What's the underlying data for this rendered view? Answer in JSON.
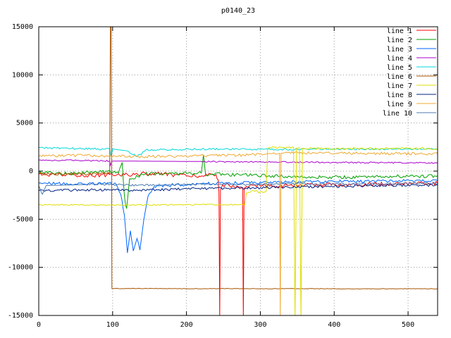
{
  "chart_data": {
    "type": "line",
    "title": "p0140_23",
    "xlabel": "",
    "ylabel": "",
    "xlim": [
      0,
      540
    ],
    "ylim": [
      -15000,
      15000
    ],
    "xticks": [
      0,
      100,
      200,
      300,
      400,
      500
    ],
    "yticks": [
      -15000,
      -10000,
      -5000,
      0,
      5000,
      10000,
      15000
    ],
    "grid": true,
    "legend_position": "top-right",
    "background_color": "#ffffff",
    "border_color": "#000000",
    "series": [
      {
        "name": "line 1",
        "color": "#ff0000",
        "noise": 200,
        "keypoints": [
          [
            0,
            -350
          ],
          [
            60,
            -450
          ],
          [
            120,
            -350
          ],
          [
            160,
            -250
          ],
          [
            200,
            -500
          ],
          [
            225,
            -450
          ],
          [
            240,
            -350
          ],
          [
            243,
            -900,
            100
          ],
          [
            244,
            -2300,
            0
          ],
          [
            245,
            -15500,
            0
          ],
          [
            246,
            -2000,
            0
          ],
          [
            249,
            -1400,
            200
          ],
          [
            276,
            -1700,
            0
          ],
          [
            277,
            -15500,
            0
          ],
          [
            278,
            -1800,
            0
          ],
          [
            281,
            -1600,
            200
          ],
          [
            360,
            -1450
          ],
          [
            450,
            -1350
          ],
          [
            540,
            -1250
          ]
        ]
      },
      {
        "name": "line 2",
        "color": "#00a000",
        "noise": 170,
        "keypoints": [
          [
            0,
            -150
          ],
          [
            40,
            -250
          ],
          [
            85,
            -50
          ],
          [
            108,
            -200
          ],
          [
            113,
            900,
            250
          ],
          [
            116,
            -2600,
            250
          ],
          [
            119,
            -3900,
            0
          ],
          [
            123,
            -800,
            250
          ],
          [
            140,
            -300
          ],
          [
            195,
            -250
          ],
          [
            220,
            -200,
            0
          ],
          [
            223,
            1700,
            0
          ],
          [
            226,
            -500,
            0
          ],
          [
            235,
            -300
          ],
          [
            340,
            -550
          ],
          [
            420,
            -650
          ],
          [
            480,
            -550
          ],
          [
            540,
            -500
          ]
        ]
      },
      {
        "name": "line 3",
        "color": "#0066ff",
        "noise": 150,
        "keypoints": [
          [
            0,
            -1250
          ],
          [
            50,
            -1350
          ],
          [
            95,
            -1250
          ],
          [
            105,
            -1400
          ],
          [
            111,
            -2400,
            120
          ],
          [
            116,
            -4600,
            120
          ],
          [
            120,
            -8500,
            0
          ],
          [
            124,
            -6200,
            200
          ],
          [
            128,
            -8300,
            0
          ],
          [
            133,
            -7000,
            250
          ],
          [
            137,
            -8200,
            0
          ],
          [
            142,
            -5200,
            200
          ],
          [
            148,
            -2600,
            150
          ],
          [
            156,
            -1600
          ],
          [
            220,
            -1300
          ],
          [
            290,
            -1200
          ],
          [
            360,
            -1100
          ],
          [
            450,
            -1050
          ],
          [
            540,
            -1000
          ]
        ]
      },
      {
        "name": "line 4",
        "color": "#aa00cc",
        "noise": 70,
        "keypoints": [
          [
            0,
            1150
          ],
          [
            75,
            1100
          ],
          [
            96,
            1050
          ],
          [
            97,
            600,
            0
          ],
          [
            99,
            1050,
            0
          ],
          [
            220,
            1000
          ],
          [
            320,
            950
          ],
          [
            400,
            900
          ],
          [
            470,
            880
          ],
          [
            540,
            850
          ]
        ]
      },
      {
        "name": "line 5",
        "color": "#00d8d8",
        "noise": 90,
        "keypoints": [
          [
            0,
            2450
          ],
          [
            40,
            2350
          ],
          [
            90,
            2300
          ],
          [
            96,
            2300,
            0
          ],
          [
            98,
            1500,
            0
          ],
          [
            100,
            2300,
            0
          ],
          [
            120,
            2100
          ],
          [
            133,
            1500,
            150
          ],
          [
            145,
            2200
          ],
          [
            245,
            2300
          ],
          [
            320,
            2250
          ],
          [
            400,
            2300
          ],
          [
            470,
            2280
          ],
          [
            540,
            2300
          ]
        ]
      },
      {
        "name": "line 6",
        "color": "#a85400",
        "noise": 140,
        "keypoints": [
          [
            0,
            -250
          ],
          [
            50,
            -300
          ],
          [
            90,
            -280
          ],
          [
            96,
            -250,
            0
          ],
          [
            97,
            15500,
            0
          ],
          [
            98,
            15500,
            0
          ],
          [
            99,
            -12200,
            0
          ],
          [
            101,
            -12200,
            30
          ],
          [
            300,
            -12220,
            30
          ],
          [
            540,
            -12230,
            30
          ]
        ]
      },
      {
        "name": "line 7",
        "color": "#dede00",
        "noise": 60,
        "keypoints": [
          [
            0,
            -3500,
            60
          ],
          [
            100,
            -3520,
            60
          ],
          [
            190,
            -3500,
            60
          ],
          [
            250,
            -3480,
            60
          ],
          [
            279,
            -3500,
            0
          ],
          [
            281,
            -2300,
            0
          ],
          [
            284,
            -2200,
            150
          ],
          [
            291,
            -2050,
            150
          ],
          [
            300,
            -2150,
            150
          ],
          [
            308,
            -2100,
            0
          ],
          [
            310,
            2400,
            0
          ],
          [
            315,
            2450,
            100
          ],
          [
            330,
            2430,
            100
          ],
          [
            345,
            2450,
            0
          ],
          [
            347,
            -15500,
            0
          ],
          [
            349,
            2400,
            0
          ],
          [
            353,
            2420,
            0
          ],
          [
            355,
            -15500,
            0
          ],
          [
            357,
            2380,
            0
          ],
          [
            360,
            2350,
            120
          ],
          [
            440,
            2320,
            120
          ],
          [
            490,
            2380,
            120
          ],
          [
            540,
            2350,
            120
          ]
        ]
      },
      {
        "name": "line 8",
        "color": "#002080",
        "noise": 130,
        "keypoints": [
          [
            0,
            -2050
          ],
          [
            60,
            -1950
          ],
          [
            125,
            -2000
          ],
          [
            195,
            -1850
          ],
          [
            255,
            -1800
          ],
          [
            320,
            -1700
          ],
          [
            390,
            -1600
          ],
          [
            460,
            -1500
          ],
          [
            540,
            -1450
          ]
        ]
      },
      {
        "name": "line 9",
        "color": "#f0a830",
        "noise": 140,
        "keypoints": [
          [
            0,
            1550
          ],
          [
            65,
            1650
          ],
          [
            135,
            1500
          ],
          [
            205,
            1600
          ],
          [
            270,
            1650
          ],
          [
            305,
            1750
          ],
          [
            318,
            1900
          ],
          [
            326,
            1850,
            0
          ],
          [
            327,
            -15500,
            0
          ],
          [
            328,
            1850,
            0
          ],
          [
            333,
            1900,
            140
          ],
          [
            440,
            1850
          ],
          [
            540,
            1800
          ]
        ]
      },
      {
        "name": "line 10",
        "color": "#4b7bb0",
        "noise": 110,
        "keypoints": [
          [
            0,
            -1550
          ],
          [
            5,
            -2400,
            0
          ],
          [
            10,
            -1500,
            0
          ],
          [
            65,
            -1400
          ],
          [
            135,
            -1450
          ],
          [
            205,
            -1350
          ],
          [
            270,
            -1400
          ],
          [
            340,
            -1300
          ],
          [
            410,
            -1350
          ],
          [
            470,
            -1300
          ],
          [
            540,
            -1280
          ]
        ]
      }
    ]
  }
}
